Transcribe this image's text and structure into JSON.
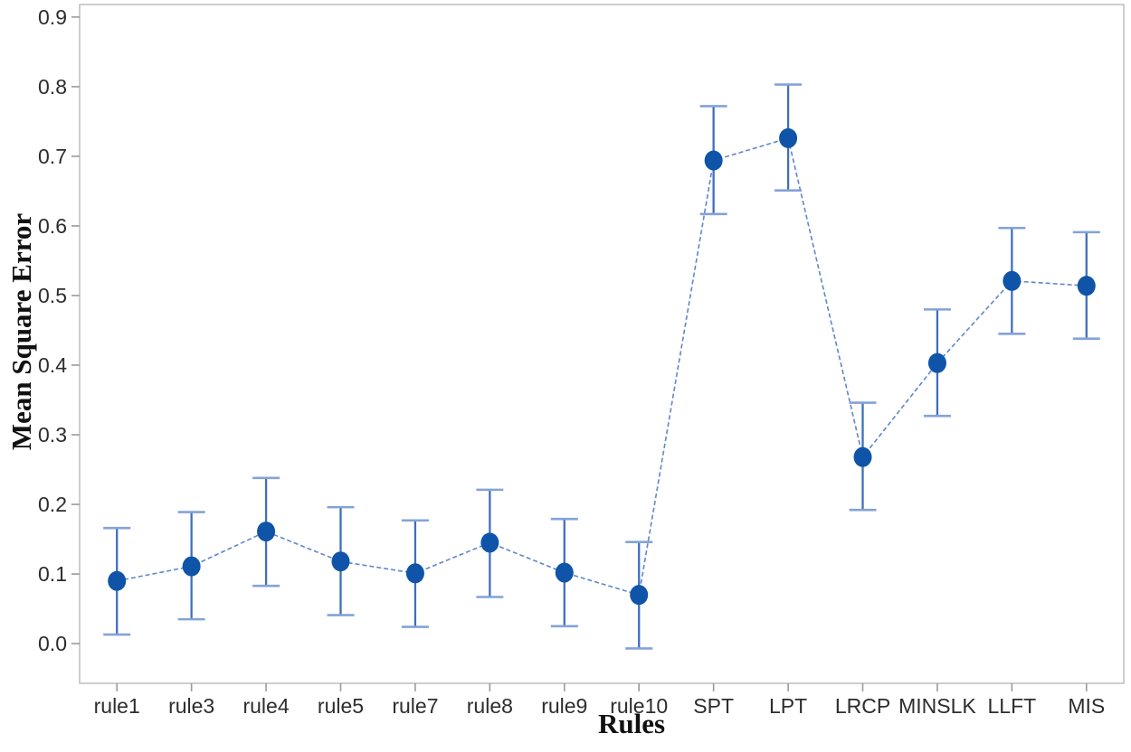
{
  "chart_data": {
    "type": "line",
    "subtype": "interval-plot-with-error-bars",
    "title": "",
    "xlabel": "Rules",
    "ylabel": "Mean Square Error",
    "categories": [
      "rule1",
      "rule3",
      "rule4",
      "rule5",
      "rule7",
      "rule8",
      "rule9",
      "rule10",
      "SPT",
      "LPT",
      "LRCP",
      "MINSLK",
      "LLFT",
      "MIS"
    ],
    "series": [
      {
        "name": "Mean Square Error",
        "values": [
          0.09,
          0.111,
          0.161,
          0.118,
          0.101,
          0.145,
          0.102,
          0.07,
          0.694,
          0.726,
          0.268,
          0.403,
          0.521,
          0.514
        ],
        "error_lower": [
          0.013,
          0.035,
          0.083,
          0.041,
          0.024,
          0.067,
          0.025,
          -0.007,
          0.617,
          0.651,
          0.192,
          0.327,
          0.445,
          0.438
        ],
        "error_upper": [
          0.166,
          0.189,
          0.238,
          0.196,
          0.177,
          0.221,
          0.179,
          0.146,
          0.772,
          0.803,
          0.346,
          0.48,
          0.597,
          0.591
        ]
      }
    ],
    "ytick_labels": [
      "0.0",
      "0.1",
      "0.2",
      "0.3",
      "0.4",
      "0.5",
      "0.6",
      "0.7",
      "0.8",
      "0.9"
    ],
    "ylim": [
      -0.057,
      0.918
    ],
    "grid": false,
    "legend_position": "none",
    "marker": "filled-circle",
    "line_style": "dashed",
    "colors": {
      "point": "#0f54a8",
      "error_bar": "#3f6fbe",
      "error_cap": "#84a2d8",
      "connector_line": "#5d87cc",
      "frame": "#b9b9b9",
      "tick": "#9a9a9a",
      "tick_label": "#2d2d2d",
      "axis_title": "#111111"
    }
  }
}
